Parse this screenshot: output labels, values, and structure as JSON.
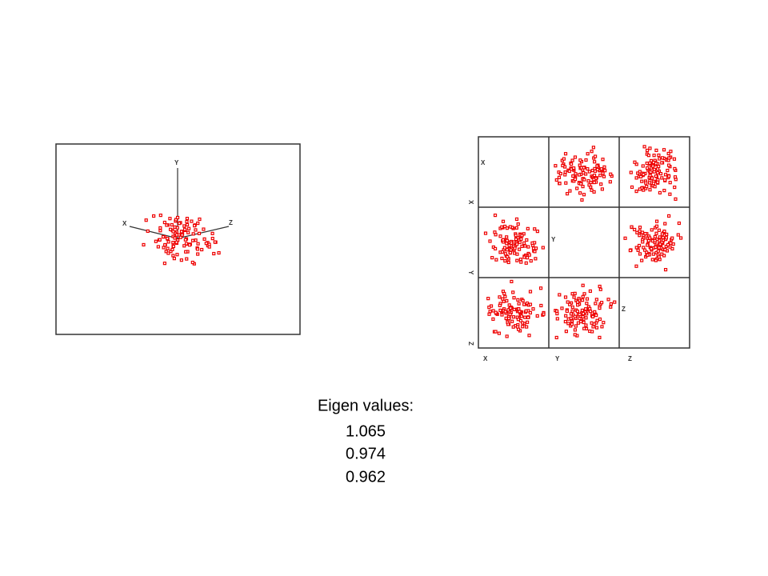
{
  "scatter3d": {
    "axes": [
      "X",
      "Y",
      "Z"
    ]
  },
  "matrix": {
    "diagonal": [
      "X",
      "Y",
      "Z"
    ],
    "side": [
      "X",
      "Y",
      "Z"
    ],
    "bottom": [
      "X",
      "Y",
      "Z"
    ]
  },
  "eigen": {
    "title": "Eigen values:",
    "values": [
      1.065,
      0.974,
      0.962
    ]
  }
}
